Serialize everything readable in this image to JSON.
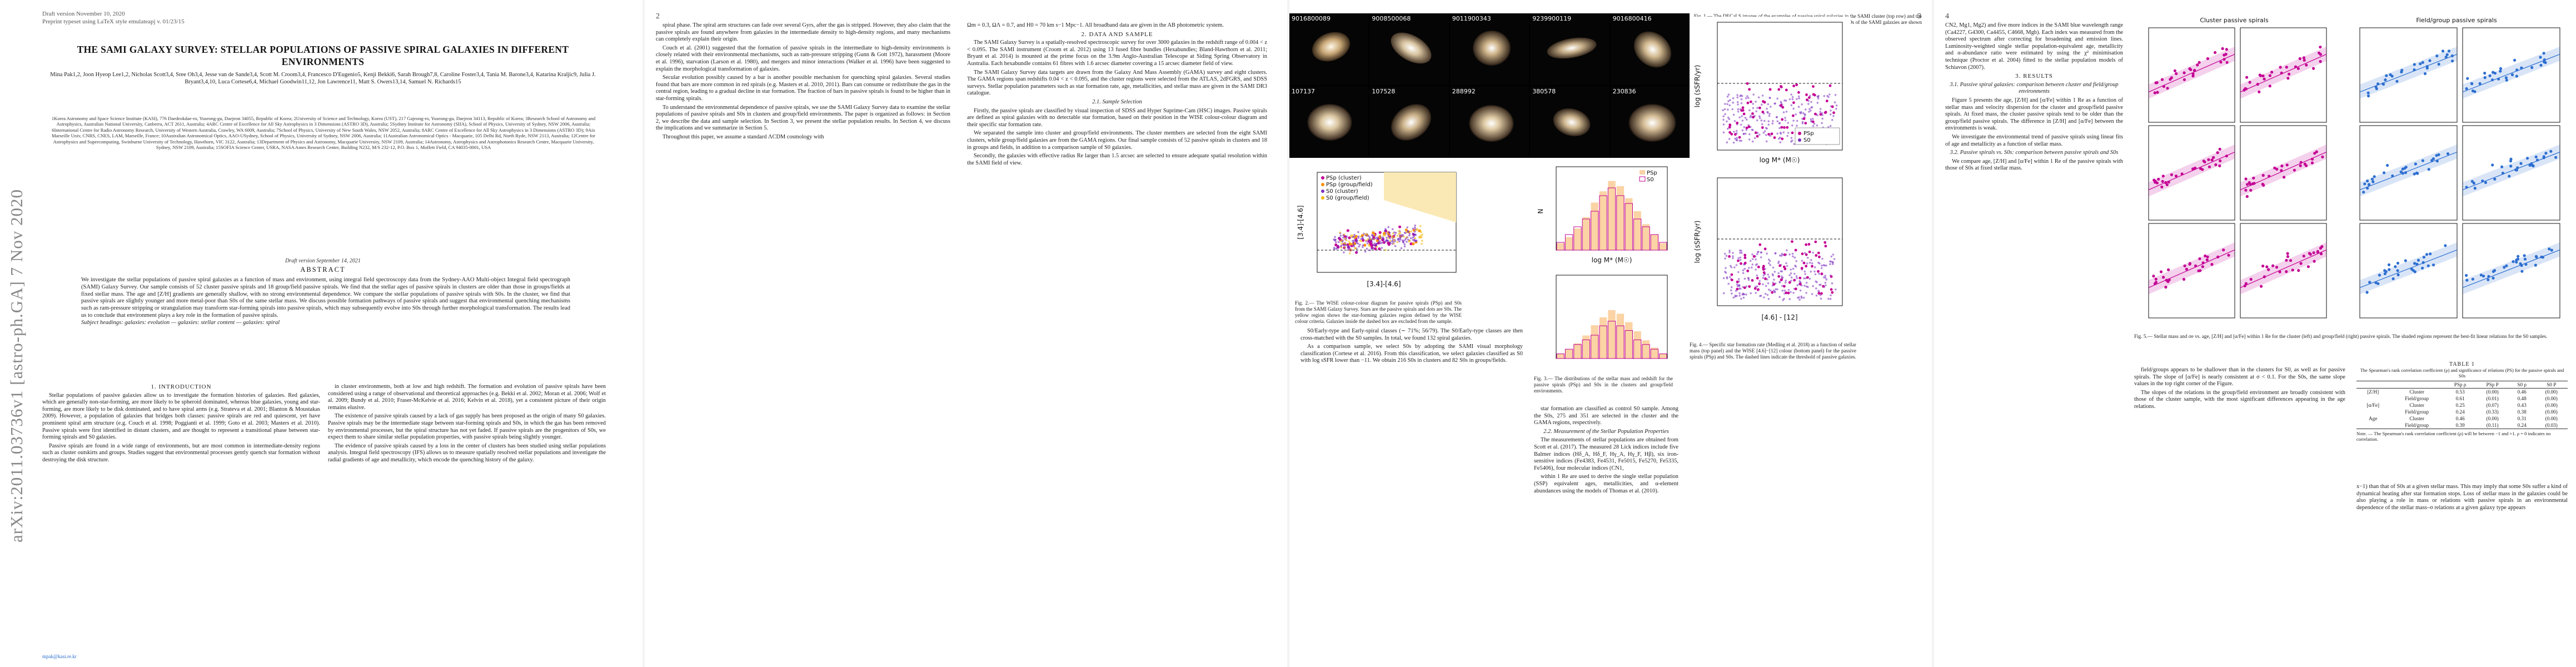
{
  "page1": {
    "arxiv_stamp": "arXiv:2011.03736v1  [astro-ph.GA]  7 Nov 2020",
    "header_line1": "Draft version November 10, 2020",
    "header_line2": "Preprint typeset using LaTeX style emulateapj v. 01/23/15",
    "title": "THE SAMI GALAXY SURVEY: STELLAR POPULATIONS OF PASSIVE SPIRAL GALAXIES IN DIFFERENT ENVIRONMENTS",
    "authors": "Mina Pak1,2, Joon Hyeop Lee1,2, Nicholas Scott3,4, Sree Oh3,4, Jesse van de Sande3,4, Scott M. Croom3,4, Francesco D'Eugenio5, Kenji Bekki6, Sarah Brough7,8, Caroline Foster3,4, Tania M. Barone3,4, Katarina Kraljic9, Julia J. Bryant3,4,10, Luca Cortese6,4, Michael Goodwin11,12, Jon Lawrence11, Matt S. Owers13,14, Samuel N. Richards15",
    "affiliations": "1Korea Astronomy and Space Science Institute (KASI), 776 Daedeokdae-ro, Yuseong-gu, Daejeon 34055, Republic of Korea; 2University of Science and Technology, Korea (UST), 217 Gajeong-ro, Yuseong-gu, Daejeon 34113, Republic of Korea; 3Research School of Astronomy and Astrophysics, Australian National University, Canberra, ACT 2611, Australia; 4ARC Centre of Excellence for All Sky Astrophysics in 3 Dimensions (ASTRO 3D), Australia; 5Sydney Institute for Astronomy (SIfA), School of Physics, University of Sydney, NSW 2006, Australia; 6International Centre for Radio Astronomy Research, University of Western Australia, Crawley, WA 6009, Australia; 7School of Physics, University of New South Wales, NSW 2052, Australia; 8ARC Centre of Excellence for All Sky Astrophysics in 3 Dimensions (ASTRO 3D); 9Aix Marseille Univ, CNRS, CNES, LAM, Marseille, France; 10Australian Astronomical Optics, AAO-USydney, School of Physics, University of Sydney, NSW 2006, Australia; 11Australian Astronomical Optics - Macquarie, 105 Delhi Rd, North Ryde, NSW 2113, Australia; 12Centre for Astrophysics and Supercomputing, Swinburne University of Technology, Hawthorn, VIC 3122, Australia; 13Department of Physics and Astronomy, Macquarie University, NSW 2109, Australia; 14Astronomy, Astrophysics and Astrophotonics Research Centre, Macquarie University, Sydney, NSW 2109, Australia; 15SOFIA Science Center, USRA, NASA Ames Research Center, Building N232, M/S 232-12, P.O. Box 1, Moffett Field, CA 94035-0001, USA",
    "draft_note": "Draft version September 14, 2021",
    "abstract_heading": "ABSTRACT",
    "abstract": "We investigate the stellar populations of passive spiral galaxies as a function of mass and environment, using integral field spectroscopy data from the Sydney-AAO Multi-object Integral field spectrograph (SAMI) Galaxy Survey. Our sample consists of 52 cluster passive spirals and 18 group/field passive spirals. We find that the stellar ages of passive spirals in clusters are older than those in groups/fields at fixed stellar mass. The age and [Z/H] gradients are generally shallow, with no strong environmental dependence. We compare the stellar populations of passive spirals with S0s. In the cluster, we find that passive spirals are slightly younger and more metal-poor than S0s of the same stellar mass. We discuss possible formation pathways of passive spirals and suggest that environmental quenching mechanisms such as ram-pressure stripping or strangulation may transform star-forming spirals into passive spirals, which may subsequently evolve into S0s through further morphological transformation. The results lead us to conclude that environment plays a key role in the formation of passive spirals.",
    "subjects": "Subject headings: galaxies: evolution — galaxies: stellar content — galaxies: spiral",
    "sec1_heading": "1. INTRODUCTION",
    "sec1_p1": "Stellar populations of passive galaxies allow us to investigate the formation histories of galaxies. Red galaxies, which are generally non-star-forming, are more likely to be spheroid dominated, whereas blue galaxies, young and star-forming, are more likely to be disk dominated, and to have spiral arms (e.g. Strateva et al. 2001; Blanton & Moustakas 2009). However, a population of galaxies that bridges both classes: passive spirals are red and quiescent, yet have prominent spiral arm structure (e.g. Couch et al. 1998; Poggianti et al. 1999; Goto et al. 2003; Masters et al. 2010). Passive spirals were first identified in distant clusters, and are thought to represent a transitional phase between star-forming spirals and S0 galaxies.",
    "sec1_p2": "Passive spirals are found in a wide range of environments, but are most common in intermediate-density regions such as cluster outskirts and groups. Studies suggest that environmental processes gently quench star formation without destroying the disk structure.",
    "email": "mpak@kasi.re.kr",
    "col2_p1": "in cluster environments, both at low and high redshift. The formation and evolution of passive spirals have been considered using a range of observational and theoretical approaches (e.g. Bekki et al. 2002; Moran et al. 2006; Wolf et al. 2009; Bundy et al. 2010; Fraser-McKelvie et al. 2016; Kelvin et al. 2018), yet a consistent picture of their origin remains elusive.",
    "col2_p2": "The existence of passive spirals caused by a lack of gas supply has been proposed as the origin of many S0 galaxies. Passive spirals may be the intermediate stage between star-forming spirals and S0s, in which the gas has been removed by environmental processes, but the spiral structure has not yet faded. If passive spirals are the progenitors of S0s, we expect them to share similar stellar population properties, with passive spirals being slightly younger.",
    "col2_p3": "The evidence of passive spirals caused by a loss in the center of clusters has been studied using stellar populations analysis. Integral field spectroscopy (IFS) allows us to measure spatially resolved stellar populations and investigate the radial gradients of age and metallicity, which encode the quenching history of the galaxy."
  },
  "page2": {
    "page_number": "2",
    "col1_p1": "spiral phase. The spiral arm structures can fade over several Gyrs, after the gas is stripped. However, they also claim that the passive spirals are found anywhere from galaxies in the intermediate density to high-density regions, and many mechanisms can completely explain their origin.",
    "col1_p2": "Couch et al. (2001) suggested that the formation of passive spirals in the intermediate to high-density environments is closely related with their environmental mechanisms, such as ram-pressure stripping (Gunn & Gott 1972), harassment (Moore et al. 1996), starvation (Larson et al. 1980), and mergers and minor interactions (Walker et al. 1996) have been suggested to explain the morphological transformation of galaxies.",
    "col1_p3": "Secular evolution possibly caused by a bar is another possible mechanism for quenching spiral galaxies. Several studies found that bars are more common in red spirals (e.g. Masters et al. 2010, 2011). Bars can consume or redistribute the gas in the central region, leading to a gradual decline in star formation. The fraction of bars in passive spirals is found to be higher than in star-forming spirals.",
    "col1_p4": "To understand the environmental dependence of passive spirals, we use the SAMI Galaxy Survey data to examine the stellar populations of passive spirals and S0s in clusters and group/field environments. The paper is organized as follows: in Section 2, we describe the data and sample selection. In Section 3, we present the stellar population results. In Section 4, we discuss the implications and we summarize in Section 5.",
    "col1_p5": "Throughout this paper, we assume a standard ΛCDM cosmology with",
    "col2_p1": "Ωm = 0.3, ΩΛ = 0.7, and H0 = 70 km s−1 Mpc−1. All broadband data are given in the AB photometric system.",
    "sec2_heading": "2. DATA AND SAMPLE",
    "col2_p2": "The SAMI Galaxy Survey is a spatially-resolved spectroscopic survey for over 3000 galaxies in the redshift range of 0.004 < z < 0.095. The SAMI instrument (Croom et al. 2012) using 13 fused fibre bundles (Hexabundles; Bland-Hawthorn et al. 2011; Bryant et al. 2014) is mounted at the prime focus on the 3.9m Anglo-Australian Telescope at Siding Spring Observatory in Australia. Each hexabundle contains 61 fibres with 1.6 arcsec diameter covering a 15 arcsec diameter field of view.",
    "col2_p3": "The SAMI Galaxy Survey data targets are drawn from the Galaxy And Mass Assembly (GAMA) survey and eight clusters. The GAMA regions span redshifts 0.04 < z < 0.095, and the cluster regions were selected from the ATLAS, 2dFGRS, and SDSS surveys. Stellar population parameters such as star formation rate, age, metallicities, and stellar mass are given in the SAMI DR3 catalogue.",
    "sub21_heading": "2.1. Sample Selection",
    "col2_p4": "Firstly, the passive spirals are classified by visual inspection of SDSS and Hyper Suprime-Cam (HSC) images. Passive spirals are defined as spiral galaxies with no detectable star formation, based on their position in the WISE colour-colour diagram and their specific star formation rate.",
    "col2_p5": "We separated the sample into cluster and group/field environments. The cluster members are selected from the eight SAMI clusters, while group/field galaxies are from the GAMA regions. Our final sample consists of 52 passive spirals in clusters and 18 in groups and fields, in addition to a comparison sample of S0 galaxies.",
    "col2_p6": "Secondly, the galaxies with effective radius Re larger than 1.5 arcsec are selected to ensure adequate spatial resolution within the SAMI field of view."
  },
  "page3": {
    "page_number": "3",
    "galaxy_ids": [
      "9016800089",
      "9008500068",
      "9011900343",
      "9239900119",
      "9016800416",
      "107137",
      "107528",
      "288992",
      "380578",
      "230836"
    ],
    "fig1_caption": "Fig. 1.— The DECaLS images of the examples of passive spiral galaxies in the SAMI cluster (top row) and the SAMI-GAMA samples (bottom row). The image size is 100″ × 100″. The IDs of the SAMI galaxies are shown in the top left corner of each panel.",
    "fig2_caption": "Fig. 2.— The WISE colour-colour diagram for passive spirals (PSp) and S0s from the SAMI Galaxy Survey. Stars are the passive spirals and dots are S0s. The yellow region shows the star-forming galaxies region defined by the WISE colour criteria. Galaxies inside the dashed box are excluded from the sample.",
    "fig3_caption": "Fig. 3.— The distributions of the stellar mass and redshift for the passive spirals (PSp) and S0s in the clusters and group/field environments.",
    "legend_psp_cluster": "PSp (cluster)",
    "legend_psp_field": "PSp (group/field)",
    "legend_s0_cluster": "S0 (cluster)",
    "legend_s0_field": "S0 (group/field)",
    "legend_psp": "PSp",
    "legend_s0": "S0",
    "col1_p1": "S0/Early-type and Early-spiral classes (∼ 71%; 56/79). The S0/Early-type classes are then cross-matched with the S0 samples. In total, we found 132 spiral galaxies.",
    "col1_p2": "As a comparison sample, we select S0s by adopting the SAMI visual morphology classification (Cortese et al. 2016). From this classification, we select galaxies classified as S0 with log sSFR lower than −11. We obtain 216 S0s in clusters and 82 S0s in groups/fields.",
    "col2_p1": "star formation are classified as control S0 sample. Among the S0s, 275 and 351 are selected in the cluster and the GAMA regions, respectively.",
    "sub22_heading": "2.2. Measurement of the Stellar Population Properties",
    "col2_p2": "The measurements of stellar populations are obtained from Scott et al. (2017). The measured 28 Lick indices include five Balmer indices (Hδ_A, Hδ_F, Hγ_A, Hγ_F, Hβ), six iron-sensitive indices (Fe4383, Fe4531, Fe5015, Fe5270, Fe5335, Fe5406), four molecular indices (CN1,",
    "col2_p3": "within 1 Re are used to derive the single stellar population (SSP) equivalent ages, metallicities, and α-element abundances using the models of Thomas et al. (2010)."
  },
  "page4": {
    "page_number": "4",
    "fig4_caption": "Fig. 4.— Specific star formation rate (Medling et al. 2018) as a function of stellar mass (top panel) and the WISE [4.6]−[12] colour (bottom panel) for the passive spirals (PSp) and S0s. The dashed lines indicate the threshold of passive galaxies.",
    "col1_p1": "CN2, Mg1, Mg2) and five more indices in the SAMI blue wavelength range (Ca4227, G4300, Ca4455, C4668, Mgb). Each index was measured from the observed spectrum after correcting for broadening and emission lines. Luminosity-weighted single stellar population-equivalent age, metallicity and α-abundance ratio were estimated by using the χ² minimisation technique (Proctor et al. 2004) fitted to the stellar population models of Schiavon (2007).",
    "sec3_heading": "3. RESULTS",
    "sub31_heading": "3.1. Passive spiral galaxies: comparison between cluster and field/group environments",
    "col1_p2": "Figure 5 presents the age, [Z/H] and [α/Fe] within 1 Re as a function of stellar mass and velocity dispersion for the cluster and group/field passive spirals. At fixed mass, the cluster passive spirals tend to be older than the group/field passive spirals. The difference in [Z/H] and [α/Fe] between the environments is weak.",
    "col1_p3": "We investigate the environmental trend of passive spirals using linear fits of age and metallicity as a function of stellar mass.",
    "sub32_heading": "3.2. Passive spirals vs. S0s: comparison between passive spirals and S0s",
    "col1_p4": "We compare age, [Z/H] and [α/Fe] within 1 Re of the passive spirals with those of S0s at fixed stellar mass.",
    "fig5_panel1_title": "Cluster passive spirals",
    "fig5_panel2_title": "Field/group passive spirals",
    "fig5_caption": "Fig. 5.— Stellar mass and σe vs. age, [Z/H] and [α/Fe] within 1 Re for the cluster (left) and group/field (right) passive spirals. The shaded regions represent the best-fit linear relations for the S0 samples.",
    "table_title": "TABLE 1",
    "table_subtitle": "The Spearman's rank correlation coefficient (ρ) and significance of relations (PS) for the passive spirals and S0s",
    "table_headers": [
      "",
      "",
      "PSp ρ",
      "PSp P",
      "S0 ρ",
      "S0 P"
    ],
    "table_rows": [
      [
        "[Z/H]",
        "Cluster",
        "0.53",
        "(0.00)",
        "0.46",
        "(0.00)"
      ],
      [
        "",
        "Field/group",
        "0.61",
        "(0.01)",
        "0.48",
        "(0.00)"
      ],
      [
        "[α/Fe]",
        "Cluster",
        "0.25",
        "(0.07)",
        "0.43",
        "(0.00)"
      ],
      [
        "",
        "Field/group",
        "0.24",
        "(0.33)",
        "0.38",
        "(0.00)"
      ],
      [
        "Age",
        "Cluster",
        "0.46",
        "(0.00)",
        "0.31",
        "(0.00)"
      ],
      [
        "",
        "Field/group",
        "0.39",
        "(0.11)",
        "0.24",
        "(0.03)"
      ]
    ],
    "table_note": "Note. — The Spearman's rank correlation coefficient (ρ) will be between −1 and +1. ρ = 0 indicates no correlation.",
    "col3_p1": "field/groups appears to be shallower than in the clusters for S0, as well as for passive spirals. The slope of [α/Fe] is nearly consistent at σ < 0.1. For the S0s, the same slope values in the top right corner of the Figure.",
    "col3_p2": "The slopes of the relations in the group/field environment are broadly consistent with those of the cluster sample, with the most significant differences appearing in the age relations.",
    "col4_p1": "x−1) than that of S0s at a given stellar mass. This may imply that some S0s suffer a kind of dynamical heating after star formation stops. Loss of stellar mass in the galaxies could be also playing a role in mass or relations with passive spirals in an environmental dependence of the stellar mass–σ relations at a given galaxy type appears"
  },
  "chart_data": [
    {
      "type": "scatter",
      "title": "",
      "xlabel": "[3.4]-[4.6]",
      "ylabel": "[3.4]-[4.6]",
      "xlim": [
        -1,
        6
      ],
      "ylim": [
        -0.4,
        0.8
      ],
      "series": [
        {
          "name": "PSp (cluster)",
          "color": "#c40094"
        },
        {
          "name": "PSp (group/field)",
          "color": "#ff8c00"
        },
        {
          "name": "S0 (cluster)",
          "color": "#7b2fbf"
        },
        {
          "name": "S0 (group/field)",
          "color": "#f2b705"
        }
      ]
    },
    {
      "type": "bar",
      "title": "",
      "xlabel": "log M* (M☉)",
      "ylabel": "N",
      "categories": [
        "9.0",
        "9.2",
        "9.4",
        "9.6",
        "9.8",
        "10.0",
        "10.2",
        "10.4",
        "10.6",
        "10.8",
        "11.0",
        "11.2",
        "11.4"
      ],
      "series": [
        {
          "name": "PSp",
          "values": [
            1,
            2,
            3,
            4,
            5,
            7,
            8,
            7,
            6,
            4,
            3,
            2,
            1
          ]
        },
        {
          "name": "S0",
          "values": [
            8,
            15,
            25,
            38,
            55,
            68,
            80,
            74,
            60,
            45,
            30,
            18,
            8
          ]
        }
      ],
      "ylim": [
        0,
        90
      ]
    },
    {
      "type": "scatter",
      "xlabel": "log M* (M☉)",
      "ylabel": "log (sSFR/yr)",
      "xlim": [
        9,
        11.5
      ],
      "ylim": [
        -14,
        -8
      ],
      "series": [
        {
          "name": "PSp",
          "color": "#c40094"
        },
        {
          "name": "S0",
          "color": "#7b2fbf"
        }
      ]
    },
    {
      "type": "scatter",
      "xlabel": "[4.6] - [12]",
      "ylabel": "log (sSFR/yr)",
      "xlim": [
        -1,
        5
      ],
      "ylim": [
        -14,
        -8
      ],
      "series": [
        {
          "name": "PSp",
          "color": "#c40094"
        },
        {
          "name": "S0",
          "color": "#7b2fbf"
        }
      ]
    }
  ]
}
